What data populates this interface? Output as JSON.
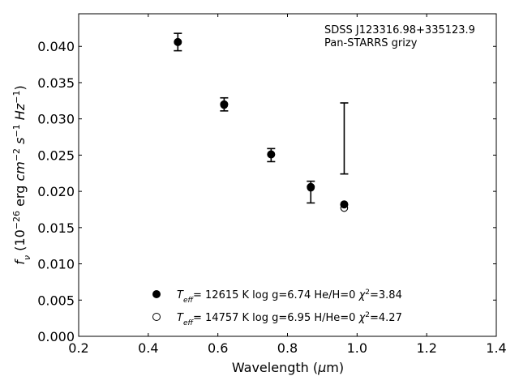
{
  "chart_data": {
    "type": "scatter",
    "title": "",
    "xlabel": "Wavelength (μm)",
    "ylabel": "f_ν (10^-26 erg cm^-2 s^-1 Hz^-1)",
    "xlim": [
      0.2,
      1.4
    ],
    "ylim": [
      0.0,
      0.0445
    ],
    "xticks": [
      0.2,
      0.4,
      0.6,
      0.8,
      1.0,
      1.2,
      1.4
    ],
    "xtick_labels": [
      "0.2",
      "0.4",
      "0.6",
      "0.8",
      "1.0",
      "1.2",
      "1.4"
    ],
    "yticks": [
      0.0,
      0.005,
      0.01,
      0.015,
      0.02,
      0.025,
      0.03,
      0.035,
      0.04
    ],
    "ytick_labels": [
      "0.000",
      "0.005",
      "0.010",
      "0.015",
      "0.020",
      "0.025",
      "0.030",
      "0.035",
      "0.040"
    ],
    "grid": false,
    "annotations": [
      "SDSS J123316.98+335123.9",
      "Pan-STARRS grizy"
    ],
    "observed": {
      "x": [
        0.485,
        0.618,
        0.753,
        0.867,
        0.963
      ],
      "y": [
        0.0406,
        0.032,
        0.025,
        0.0199,
        0.0273
      ],
      "yerr": [
        0.0012,
        0.0009,
        0.0009,
        0.0015,
        0.0049
      ]
    },
    "series": [
      {
        "name": "T_eff= 12615 K  log g=6.74  He/H=0  χ²=3.84",
        "marker": "filled-circle",
        "x": [
          0.485,
          0.618,
          0.753,
          0.867,
          0.963
        ],
        "y": [
          0.0406,
          0.032,
          0.0251,
          0.0206,
          0.0182
        ]
      },
      {
        "name": "T_eff= 14757 K  log g=6.95  H/He=0  χ²=4.27",
        "marker": "open-circle",
        "x": [
          0.485,
          0.618,
          0.753,
          0.867,
          0.963
        ],
        "y": [
          0.0406,
          0.0319,
          0.0251,
          0.0205,
          0.0177
        ]
      }
    ],
    "legend": {
      "placement": "lower-center",
      "entries": [
        {
          "marker": "filled-circle",
          "teff": "= 12615 K  log g=6.74  He/H=0  ",
          "chi": "=3.84"
        },
        {
          "marker": "open-circle",
          "teff": "= 14757 K  log g=6.95  H/He=0  ",
          "chi": "=4.27"
        }
      ]
    }
  }
}
